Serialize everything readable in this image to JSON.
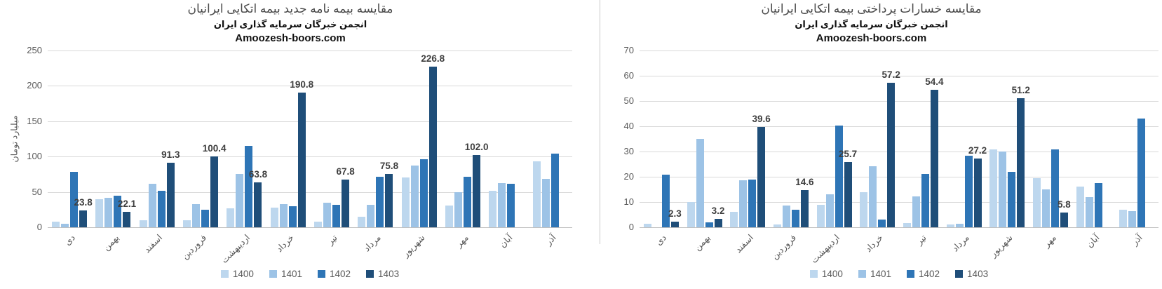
{
  "chart_data": [
    {
      "type": "bar",
      "title": "مقایسه بیمه نامه جدید بیمه اتکایی ایرانیان",
      "subtitle": "انجمن خبرگان سرمایه گذاری ایران",
      "watermark": "Amoozesh-boors.com",
      "ylabel": "میلیارد تومان",
      "ylim": [
        0,
        250
      ],
      "ytick_step": 50,
      "grid": true,
      "legend_position": "bottom",
      "categories": [
        "دی",
        "بهمن",
        "اسفند",
        "فروردین",
        "اردیبهشت",
        "خرداد",
        "تیر",
        "مرداد",
        "شهریور",
        "مهر",
        "آبان",
        "آذر"
      ],
      "series": [
        {
          "name": "1400",
          "color": "#BDD7EE",
          "values": [
            8,
            40,
            10,
            10,
            27,
            28,
            8,
            15,
            70,
            31,
            52,
            93
          ]
        },
        {
          "name": "1401",
          "color": "#9DC3E6",
          "values": [
            5,
            42,
            62,
            33,
            75,
            33,
            35,
            32,
            87,
            50,
            63,
            68
          ]
        },
        {
          "name": "1402",
          "color": "#2E75B6",
          "values": [
            78,
            45,
            52,
            25,
            115,
            30,
            32,
            71,
            96,
            71,
            62,
            104
          ]
        },
        {
          "name": "1403",
          "color": "#1F4E79",
          "data_labels": true,
          "values": [
            23.8,
            22.1,
            91.3,
            100.4,
            63.8,
            190.8,
            67.8,
            75.8,
            226.8,
            102.0,
            null,
            null
          ]
        }
      ]
    },
    {
      "type": "bar",
      "title": "مقایسه خسارات پرداختی بیمه اتکایی ایرانیان",
      "subtitle": "انجمن خبرگان سرمایه گذاری ایران",
      "watermark": "Amoozesh-boors.com",
      "ylabel": "",
      "ylim": [
        0,
        70
      ],
      "ytick_step": 10,
      "grid": true,
      "legend_position": "bottom",
      "categories": [
        "دی",
        "بهمن",
        "اسفند",
        "فروردین",
        "اردیبهشت",
        "خرداد",
        "تیر",
        "مرداد",
        "شهریور",
        "مهر",
        "آبان",
        "آذر"
      ],
      "series": [
        {
          "name": "1400",
          "color": "#BDD7EE",
          "values": [
            1.5,
            10,
            6,
            1,
            9,
            14,
            1.8,
            1,
            30.8,
            19.4,
            16,
            7
          ]
        },
        {
          "name": "1401",
          "color": "#9DC3E6",
          "values": [
            null,
            35,
            18.5,
            8.6,
            13,
            24.3,
            12.3,
            1.5,
            30,
            15,
            12,
            6.5
          ]
        },
        {
          "name": "1402",
          "color": "#2E75B6",
          "values": [
            20.7,
            2,
            18.8,
            7,
            40.3,
            3,
            21,
            28.4,
            22,
            30.8,
            17.5,
            43
          ]
        },
        {
          "name": "1403",
          "color": "#1F4E79",
          "data_labels": true,
          "values": [
            2.3,
            3.2,
            39.6,
            14.6,
            25.7,
            57.2,
            54.4,
            27.2,
            51.2,
            5.8,
            null,
            null
          ]
        }
      ]
    }
  ],
  "colors": {
    "gridline": "#d9d9d9",
    "axis_line": "#bfbfbf",
    "tick_text": "#595959",
    "data_label_text": "#3f3f3f"
  }
}
